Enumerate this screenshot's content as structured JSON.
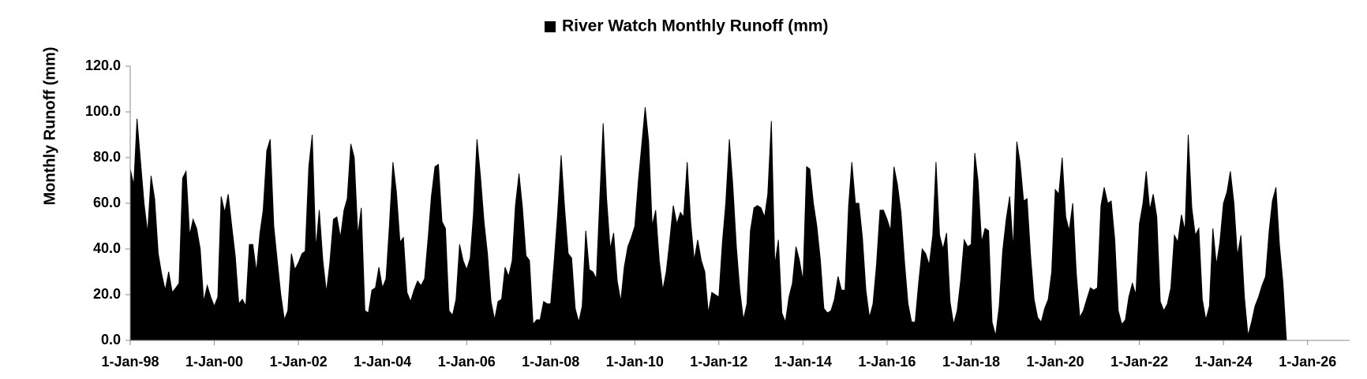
{
  "chart_data": {
    "type": "area",
    "y_label": "Monthly Runoff (mm)",
    "legend": "top",
    "x": [
      "1998-01-01",
      "1998-02-01",
      "1998-03-01",
      "1998-04-01",
      "1998-05-01",
      "1998-06-01",
      "1998-07-01",
      "1998-08-01",
      "1998-09-01",
      "1998-10-01",
      "1998-11-01",
      "1998-12-01",
      "1999-01-01",
      "1999-02-01",
      "1999-03-01",
      "1999-04-01",
      "1999-05-01",
      "1999-06-01",
      "1999-07-01",
      "1999-08-01",
      "1999-09-01",
      "1999-10-01",
      "1999-11-01",
      "1999-12-01",
      "2000-01-01",
      "2000-02-01",
      "2000-03-01",
      "2000-04-01",
      "2000-05-01",
      "2000-06-01",
      "2000-07-01",
      "2000-08-01",
      "2000-09-01",
      "2000-10-01",
      "2000-11-01",
      "2000-12-01",
      "2001-01-01",
      "2001-02-01",
      "2001-03-01",
      "2001-04-01",
      "2001-05-01",
      "2001-06-01",
      "2001-07-01",
      "2001-08-01",
      "2001-09-01",
      "2001-10-01",
      "2001-11-01",
      "2001-12-01",
      "2002-01-01",
      "2002-02-01",
      "2002-03-01",
      "2002-04-01",
      "2002-05-01",
      "2002-06-01",
      "2002-07-01",
      "2002-08-01",
      "2002-09-01",
      "2002-10-01",
      "2002-11-01",
      "2002-12-01",
      "2003-01-01",
      "2003-02-01",
      "2003-03-01",
      "2003-04-01",
      "2003-05-01",
      "2003-06-01",
      "2003-07-01",
      "2003-08-01",
      "2003-09-01",
      "2003-10-01",
      "2003-11-01",
      "2003-12-01",
      "2004-01-01",
      "2004-02-01",
      "2004-03-01",
      "2004-04-01",
      "2004-05-01",
      "2004-06-01",
      "2004-07-01",
      "2004-08-01",
      "2004-09-01",
      "2004-10-01",
      "2004-11-01",
      "2004-12-01",
      "2005-01-01",
      "2005-02-01",
      "2005-03-01",
      "2005-04-01",
      "2005-05-01",
      "2005-06-01",
      "2005-07-01",
      "2005-08-01",
      "2005-09-01",
      "2005-10-01",
      "2005-11-01",
      "2005-12-01",
      "2006-01-01",
      "2006-02-01",
      "2006-03-01",
      "2006-04-01",
      "2006-05-01",
      "2006-06-01",
      "2006-07-01",
      "2006-08-01",
      "2006-09-01",
      "2006-10-01",
      "2006-11-01",
      "2006-12-01",
      "2007-01-01",
      "2007-02-01",
      "2007-03-01",
      "2007-04-01",
      "2007-05-01",
      "2007-06-01",
      "2007-07-01",
      "2007-08-01",
      "2007-09-01",
      "2007-10-01",
      "2007-11-01",
      "2007-12-01",
      "2008-01-01",
      "2008-02-01",
      "2008-03-01",
      "2008-04-01",
      "2008-05-01",
      "2008-06-01",
      "2008-07-01",
      "2008-08-01",
      "2008-09-01",
      "2008-10-01",
      "2008-11-01",
      "2008-12-01",
      "2009-01-01",
      "2009-02-01",
      "2009-03-01",
      "2009-04-01",
      "2009-05-01",
      "2009-06-01",
      "2009-07-01",
      "2009-08-01",
      "2009-09-01",
      "2009-10-01",
      "2009-11-01",
      "2009-12-01",
      "2010-01-01",
      "2010-02-01",
      "2010-03-01",
      "2010-04-01",
      "2010-05-01",
      "2010-06-01",
      "2010-07-01",
      "2010-08-01",
      "2010-09-01",
      "2010-10-01",
      "2010-11-01",
      "2010-12-01",
      "2011-01-01",
      "2011-02-01",
      "2011-03-01",
      "2011-04-01",
      "2011-05-01",
      "2011-06-01",
      "2011-07-01",
      "2011-08-01",
      "2011-09-01",
      "2011-10-01",
      "2011-11-01",
      "2011-12-01",
      "2012-01-01",
      "2012-02-01",
      "2012-03-01",
      "2012-04-01",
      "2012-05-01",
      "2012-06-01",
      "2012-07-01",
      "2012-08-01",
      "2012-09-01",
      "2012-10-01",
      "2012-11-01",
      "2012-12-01",
      "2013-01-01",
      "2013-02-01",
      "2013-03-01",
      "2013-04-01",
      "2013-05-01",
      "2013-06-01",
      "2013-07-01",
      "2013-08-01",
      "2013-09-01",
      "2013-10-01",
      "2013-11-01",
      "2013-12-01",
      "2014-01-01",
      "2014-02-01",
      "2014-03-01",
      "2014-04-01",
      "2014-05-01",
      "2014-06-01",
      "2014-07-01",
      "2014-08-01",
      "2014-09-01",
      "2014-10-01",
      "2014-11-01",
      "2014-12-01",
      "2015-01-01",
      "2015-02-01",
      "2015-03-01",
      "2015-04-01",
      "2015-05-01",
      "2015-06-01",
      "2015-07-01",
      "2015-08-01",
      "2015-09-01",
      "2015-10-01",
      "2015-11-01",
      "2015-12-01",
      "2016-01-01",
      "2016-02-01",
      "2016-03-01",
      "2016-04-01",
      "2016-05-01",
      "2016-06-01",
      "2016-07-01",
      "2016-08-01",
      "2016-09-01",
      "2016-10-01",
      "2016-11-01",
      "2016-12-01",
      "2017-01-01",
      "2017-02-01",
      "2017-03-01",
      "2017-04-01",
      "2017-05-01",
      "2017-06-01",
      "2017-07-01",
      "2017-08-01",
      "2017-09-01",
      "2017-10-01",
      "2017-11-01",
      "2017-12-01",
      "2018-01-01",
      "2018-02-01",
      "2018-03-01",
      "2018-04-01",
      "2018-05-01",
      "2018-06-01",
      "2018-07-01",
      "2018-08-01",
      "2018-09-01",
      "2018-10-01",
      "2018-11-01",
      "2018-12-01",
      "2019-01-01",
      "2019-02-01",
      "2019-03-01",
      "2019-04-01",
      "2019-05-01",
      "2019-06-01",
      "2019-07-01",
      "2019-08-01",
      "2019-09-01",
      "2019-10-01",
      "2019-11-01",
      "2019-12-01",
      "2020-01-01",
      "2020-02-01",
      "2020-03-01",
      "2020-04-01",
      "2020-05-01",
      "2020-06-01",
      "2020-07-01",
      "2020-08-01",
      "2020-09-01",
      "2020-10-01",
      "2020-11-01",
      "2020-12-01",
      "2021-01-01",
      "2021-02-01",
      "2021-03-01",
      "2021-04-01",
      "2021-05-01",
      "2021-06-01",
      "2021-07-01",
      "2021-08-01",
      "2021-09-01",
      "2021-10-01",
      "2021-11-01",
      "2021-12-01",
      "2022-01-01",
      "2022-02-01",
      "2022-03-01",
      "2022-04-01",
      "2022-05-01",
      "2022-06-01",
      "2022-07-01",
      "2022-08-01",
      "2022-09-01",
      "2022-10-01",
      "2022-11-01",
      "2022-12-01",
      "2023-01-01",
      "2023-02-01",
      "2023-03-01",
      "2023-04-01",
      "2023-05-01",
      "2023-06-01",
      "2023-07-01",
      "2023-08-01",
      "2023-09-01",
      "2023-10-01",
      "2023-11-01",
      "2023-12-01",
      "2024-01-01",
      "2024-02-01",
      "2024-03-01",
      "2024-04-01",
      "2024-05-01",
      "2024-06-01",
      "2024-07-01",
      "2024-08-01",
      "2024-09-01",
      "2024-10-01",
      "2024-11-01",
      "2024-12-01",
      "2025-01-01",
      "2025-02-01",
      "2025-03-01",
      "2025-04-01",
      "2025-05-01",
      "2025-06-01",
      "2025-07-01"
    ],
    "series": [
      {
        "name": "River Watch Monthly Runoff (mm)",
        "color": "#000000",
        "values": [
          75,
          68,
          97,
          78,
          60,
          47,
          72,
          62,
          38,
          29,
          22,
          30,
          21,
          23,
          25,
          71,
          74,
          46,
          53,
          49,
          40,
          17,
          24,
          19,
          15,
          19,
          63,
          56,
          64,
          50,
          37,
          16,
          18,
          15,
          42,
          42,
          30,
          47,
          57,
          83,
          88,
          50,
          35,
          20,
          9,
          13,
          38,
          31,
          34,
          38,
          39,
          76,
          90,
          40,
          57,
          35,
          21,
          34,
          53,
          54,
          45,
          57,
          62,
          86,
          80,
          46,
          58,
          13,
          12,
          22,
          23,
          32,
          23,
          27,
          50,
          78,
          65,
          43,
          45,
          21,
          17,
          22,
          26,
          24,
          27,
          45,
          63,
          76,
          77,
          52,
          49,
          13,
          11,
          18,
          42,
          35,
          31,
          36,
          55,
          88,
          72,
          52,
          38,
          17,
          9,
          17,
          18,
          32,
          28,
          35,
          59,
          73,
          58,
          37,
          35,
          7,
          9,
          9,
          17,
          16,
          16,
          35,
          55,
          81,
          58,
          38,
          36,
          14,
          8,
          15,
          48,
          31,
          30,
          27,
          60,
          95,
          62,
          40,
          47,
          26,
          17,
          32,
          41,
          45,
          50,
          70,
          85,
          102,
          87,
          50,
          57,
          35,
          22,
          30,
          44,
          59,
          51,
          56,
          54,
          78,
          52,
          35,
          44,
          35,
          30,
          12,
          21,
          20,
          19,
          43,
          60,
          88,
          68,
          41,
          22,
          9,
          16,
          48,
          58,
          59,
          58,
          54,
          64,
          96,
          33,
          44,
          12,
          8,
          19,
          25,
          41,
          35,
          26,
          76,
          75,
          60,
          50,
          35,
          14,
          12,
          13,
          18,
          28,
          22,
          22,
          59,
          78,
          60,
          60,
          45,
          22,
          10,
          16,
          33,
          57,
          57,
          53,
          48,
          76,
          68,
          56,
          34,
          16,
          8,
          8,
          25,
          40,
          38,
          33,
          46,
          78,
          46,
          40,
          47,
          17,
          7,
          13,
          26,
          44,
          41,
          42,
          82,
          70,
          43,
          49,
          48,
          8,
          2,
          15,
          39,
          53,
          63,
          40,
          87,
          78,
          61,
          62,
          37,
          18,
          10,
          8,
          14,
          18,
          30,
          66,
          64,
          80,
          54,
          48,
          60,
          30,
          10,
          13,
          18,
          23,
          22,
          23,
          59,
          67,
          60,
          61,
          44,
          13,
          7,
          9,
          19,
          25,
          20,
          51,
          60,
          74,
          57,
          64,
          54,
          17,
          13,
          16,
          23,
          46,
          43,
          55,
          48,
          90,
          58,
          46,
          49,
          18,
          9,
          15,
          49,
          33,
          43,
          60,
          65,
          74,
          60,
          37,
          46,
          19,
          2,
          8,
          15,
          19,
          24,
          28,
          48,
          61,
          67,
          42,
          25,
          0
        ]
      }
    ],
    "xlim": [
      "1998-01-01",
      "2027-01-01"
    ],
    "xticks": [
      {
        "value": "1998-01-01",
        "label": "1-Jan-98"
      },
      {
        "value": "2000-01-01",
        "label": "1-Jan-00"
      },
      {
        "value": "2002-01-01",
        "label": "1-Jan-02"
      },
      {
        "value": "2004-01-01",
        "label": "1-Jan-04"
      },
      {
        "value": "2006-01-01",
        "label": "1-Jan-06"
      },
      {
        "value": "2008-01-01",
        "label": "1-Jan-08"
      },
      {
        "value": "2010-01-01",
        "label": "1-Jan-10"
      },
      {
        "value": "2012-01-01",
        "label": "1-Jan-12"
      },
      {
        "value": "2014-01-01",
        "label": "1-Jan-14"
      },
      {
        "value": "2016-01-01",
        "label": "1-Jan-16"
      },
      {
        "value": "2018-01-01",
        "label": "1-Jan-18"
      },
      {
        "value": "2020-01-01",
        "label": "1-Jan-20"
      },
      {
        "value": "2022-01-01",
        "label": "1-Jan-22"
      },
      {
        "value": "2024-01-01",
        "label": "1-Jan-24"
      },
      {
        "value": "2026-01-01",
        "label": "1-Jan-26"
      }
    ],
    "ylim": [
      0,
      120
    ],
    "yticks": [
      {
        "value": 0,
        "label": "0.0"
      },
      {
        "value": 20,
        "label": "20.0"
      },
      {
        "value": 40,
        "label": "40.0"
      },
      {
        "value": 60,
        "label": "60.0"
      },
      {
        "value": 80,
        "label": "80.0"
      },
      {
        "value": 100,
        "label": "100.0"
      },
      {
        "value": 120,
        "label": "120.0"
      }
    ],
    "grid": false
  }
}
